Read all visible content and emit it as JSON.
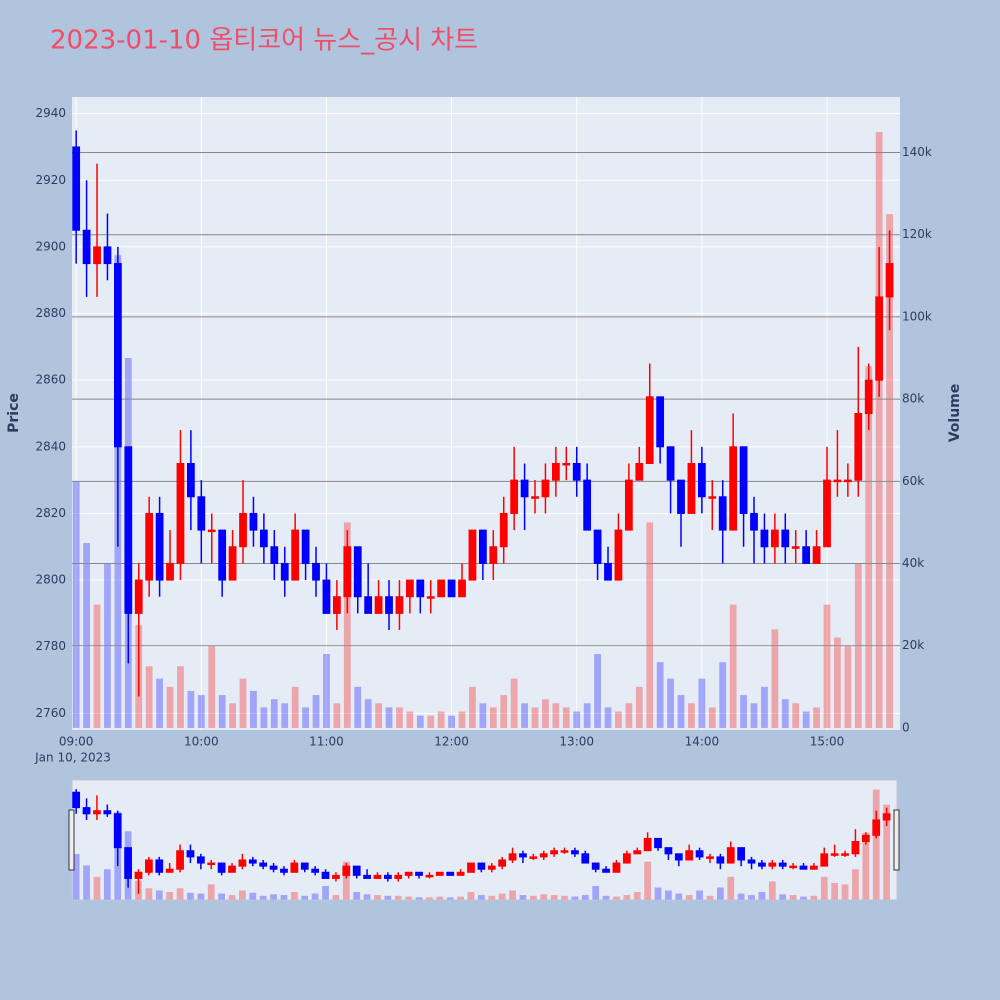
{
  "chart_data": {
    "type": "candlestick",
    "title": "2023-01-10 옵티코어 뉴스_공시 차트",
    "y_label": "Price",
    "y2_label": "Volume",
    "x_date_label": "Jan 10, 2023",
    "increasing_color": "#ff0000",
    "decreasing_color": "#0000ff",
    "x": [
      "09:00",
      "09:05",
      "09:10",
      "09:15",
      "09:20",
      "09:25",
      "09:30",
      "09:35",
      "09:40",
      "09:45",
      "09:50",
      "09:55",
      "10:00",
      "10:05",
      "10:10",
      "10:15",
      "10:20",
      "10:25",
      "10:30",
      "10:35",
      "10:40",
      "10:45",
      "10:50",
      "10:55",
      "11:00",
      "11:05",
      "11:10",
      "11:15",
      "11:20",
      "11:25",
      "11:30",
      "11:35",
      "11:40",
      "11:45",
      "11:50",
      "11:55",
      "12:00",
      "12:05",
      "12:10",
      "12:15",
      "12:20",
      "12:25",
      "12:30",
      "12:35",
      "12:40",
      "12:45",
      "12:50",
      "12:55",
      "13:00",
      "13:05",
      "13:10",
      "13:15",
      "13:20",
      "13:25",
      "13:30",
      "13:35",
      "13:40",
      "13:45",
      "13:50",
      "13:55",
      "14:00",
      "14:05",
      "14:10",
      "14:15",
      "14:20",
      "14:25",
      "14:30",
      "14:35",
      "14:40",
      "14:45",
      "14:50",
      "14:55",
      "15:00",
      "15:05",
      "15:10",
      "15:15",
      "15:20",
      "15:25",
      "15:30"
    ],
    "open": [
      2930,
      2905,
      2895,
      2900,
      2895,
      2840,
      2790,
      2800,
      2820,
      2800,
      2805,
      2835,
      2825,
      2815,
      2815,
      2800,
      2810,
      2820,
      2815,
      2810,
      2805,
      2800,
      2815,
      2805,
      2800,
      2790,
      2795,
      2810,
      2795,
      2790,
      2795,
      2790,
      2795,
      2800,
      2795,
      2795,
      2800,
      2795,
      2800,
      2815,
      2805,
      2810,
      2820,
      2830,
      2825,
      2825,
      2830,
      2835,
      2835,
      2830,
      2815,
      2805,
      2800,
      2815,
      2830,
      2835,
      2855,
      2840,
      2830,
      2820,
      2835,
      2825,
      2825,
      2815,
      2840,
      2820,
      2815,
      2810,
      2815,
      2810,
      2810,
      2805,
      2810,
      2830,
      2830,
      2830,
      2850,
      2860,
      2885
    ],
    "high": [
      2935,
      2920,
      2925,
      2910,
      2900,
      2840,
      2805,
      2825,
      2825,
      2815,
      2845,
      2845,
      2830,
      2820,
      2815,
      2815,
      2830,
      2825,
      2820,
      2815,
      2810,
      2820,
      2815,
      2810,
      2805,
      2800,
      2815,
      2810,
      2805,
      2800,
      2800,
      2800,
      2800,
      2800,
      2800,
      2800,
      2800,
      2805,
      2815,
      2815,
      2815,
      2825,
      2840,
      2835,
      2830,
      2835,
      2840,
      2840,
      2840,
      2835,
      2815,
      2810,
      2820,
      2835,
      2840,
      2865,
      2855,
      2840,
      2830,
      2845,
      2840,
      2830,
      2830,
      2850,
      2840,
      2825,
      2820,
      2820,
      2820,
      2815,
      2815,
      2815,
      2840,
      2845,
      2835,
      2870,
      2865,
      2900,
      2905
    ],
    "low": [
      2895,
      2885,
      2885,
      2890,
      2810,
      2775,
      2765,
      2795,
      2795,
      2800,
      2800,
      2815,
      2805,
      2805,
      2795,
      2800,
      2805,
      2810,
      2805,
      2800,
      2795,
      2800,
      2800,
      2795,
      2790,
      2785,
      2790,
      2790,
      2790,
      2790,
      2785,
      2785,
      2790,
      2790,
      2790,
      2795,
      2795,
      2795,
      2800,
      2800,
      2800,
      2805,
      2815,
      2815,
      2820,
      2820,
      2825,
      2830,
      2825,
      2815,
      2800,
      2800,
      2800,
      2815,
      2830,
      2835,
      2835,
      2820,
      2810,
      2820,
      2820,
      2815,
      2805,
      2815,
      2810,
      2805,
      2805,
      2805,
      2805,
      2805,
      2805,
      2805,
      2810,
      2825,
      2825,
      2825,
      2845,
      2855,
      2875
    ],
    "close": [
      2905,
      2895,
      2900,
      2895,
      2840,
      2790,
      2800,
      2820,
      2800,
      2805,
      2835,
      2825,
      2815,
      2815,
      2800,
      2810,
      2820,
      2815,
      2810,
      2805,
      2800,
      2815,
      2805,
      2800,
      2790,
      2795,
      2810,
      2795,
      2790,
      2795,
      2790,
      2795,
      2800,
      2795,
      2795,
      2800,
      2795,
      2800,
      2815,
      2805,
      2810,
      2820,
      2830,
      2825,
      2825,
      2830,
      2835,
      2835,
      2830,
      2815,
      2805,
      2800,
      2815,
      2830,
      2835,
      2855,
      2840,
      2830,
      2820,
      2835,
      2825,
      2825,
      2815,
      2840,
      2820,
      2815,
      2810,
      2815,
      2810,
      2810,
      2805,
      2810,
      2830,
      2830,
      2830,
      2850,
      2860,
      2885,
      2895
    ],
    "volume": [
      60000,
      45000,
      30000,
      40000,
      115000,
      90000,
      25000,
      15000,
      12000,
      10000,
      15000,
      9000,
      8000,
      20000,
      8000,
      6000,
      12000,
      9000,
      5000,
      7000,
      6000,
      10000,
      5000,
      8000,
      18000,
      6000,
      50000,
      10000,
      7000,
      6000,
      5000,
      5000,
      4000,
      3000,
      3000,
      4000,
      3000,
      4000,
      10000,
      6000,
      5000,
      8000,
      12000,
      6000,
      5000,
      7000,
      6000,
      5000,
      4000,
      6000,
      18000,
      5000,
      4000,
      6000,
      10000,
      50000,
      16000,
      12000,
      8000,
      6000,
      12000,
      5000,
      16000,
      30000,
      8000,
      6000,
      10000,
      24000,
      7000,
      6000,
      4000,
      5000,
      30000,
      22000,
      20000,
      40000,
      88000,
      145000,
      125000
    ],
    "xlim": [
      "08:58",
      "15:35"
    ],
    "xticks": [
      "09:00",
      "10:00",
      "11:00",
      "12:00",
      "13:00",
      "14:00",
      "15:00"
    ],
    "ylim": [
      2755,
      2945
    ],
    "yticks": [
      2760,
      2780,
      2800,
      2820,
      2840,
      2860,
      2880,
      2900,
      2920,
      2940
    ],
    "y2lim": [
      -500,
      153500
    ],
    "y2ticks": [
      0,
      {
        "value": 20000,
        "label": "20k"
      },
      {
        "value": 40000,
        "label": "40k"
      },
      {
        "value": 60000,
        "label": "60k"
      },
      {
        "value": 80000,
        "label": "80k"
      },
      {
        "value": 100000,
        "label": "100k"
      },
      {
        "value": 120000,
        "label": "120k"
      },
      {
        "value": 140000,
        "label": "140k"
      }
    ],
    "grid": true,
    "rangeslider": true
  }
}
